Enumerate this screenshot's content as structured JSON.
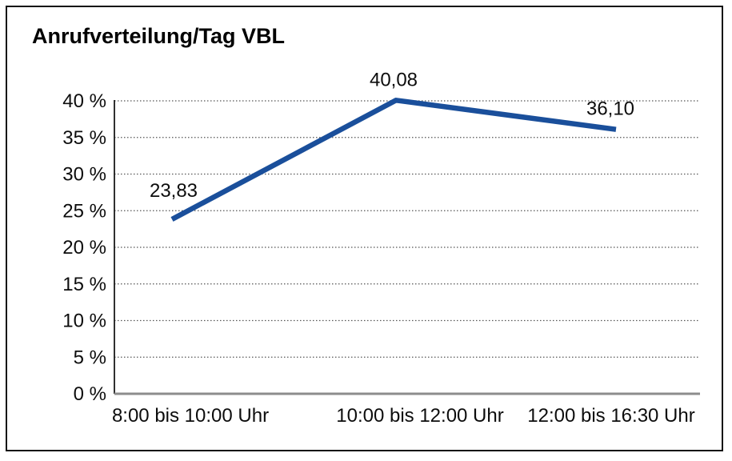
{
  "title": "Anrufverteilung/Tag VBL",
  "colors": {
    "line": "#1A4F9B",
    "grid": "#555555",
    "y_axis": "#1a1a1a",
    "x_axis": "#8c8c8c",
    "text": "#0d0d0d",
    "border": "#111111",
    "background": "#ffffff"
  },
  "chart_data": {
    "type": "line",
    "title": "Anrufverteilung/Tag VBL",
    "categories": [
      "8:00 bis 10:00 Uhr",
      "10:00 bis 12:00 Uhr",
      "12:00 bis 16:30 Uhr"
    ],
    "values": [
      23.83,
      40.08,
      36.1
    ],
    "point_labels": [
      "23,83",
      "40,08",
      "36,10"
    ],
    "series_name": "Anrufverteilung",
    "xlabel": "",
    "ylabel": "",
    "ylim": [
      0,
      40
    ],
    "ytick_step": 5,
    "ytick_labels": [
      "0 %",
      "5 %",
      "10 %",
      "15 %",
      "20 %",
      "25 %",
      "30 %",
      "35 %",
      "40 %"
    ],
    "grid": "dotted horizontal",
    "legend": "none",
    "unit": "%"
  }
}
